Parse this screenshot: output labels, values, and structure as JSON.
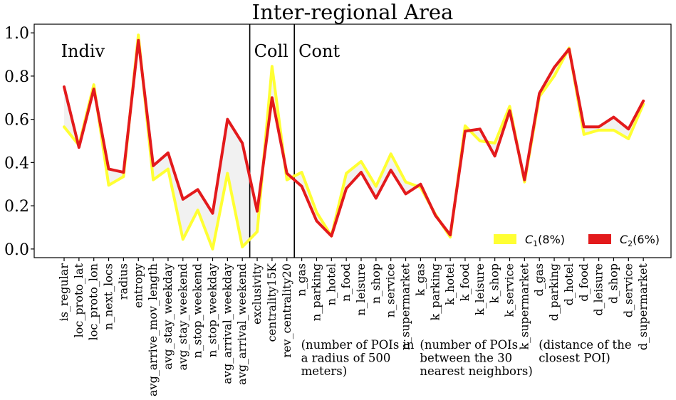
{
  "chart_data": {
    "type": "line",
    "title": "Inter-regional Area",
    "xlabel": "",
    "ylabel": "",
    "ylim": [
      -0.04,
      1.04
    ],
    "yticks": [
      0.0,
      0.2,
      0.4,
      0.6,
      0.8,
      1.0
    ],
    "ytick_labels": [
      "0.0",
      "0.2",
      "0.4",
      "0.6",
      "0.8",
      "1.0"
    ],
    "grid": false,
    "legend_position": "bottom-right",
    "categories": [
      "is_regular",
      "loc_proto_lat",
      "loc_proto_lon",
      "n_next_locs",
      "radius",
      "entropy",
      "avg_arrive_mov_length",
      "avg_stay_weekday",
      "avg_stay_weekend",
      "n_stop_weekend",
      "n_stop_weekday",
      "avg_arrival_weekday",
      "avg_arrival_weekend",
      "exclusivity",
      "centrality15K",
      "rev_centrality20",
      "n_gas",
      "n_parking",
      "n_hotel",
      "n_food",
      "n_leisure",
      "n_shop",
      "n_service",
      "n_supermarket",
      "k_gas",
      "k_parking",
      "k_hotel",
      "k_food",
      "k_leisure",
      "k_shop",
      "k_service",
      "k_supermarket",
      "d_gas",
      "d_parking",
      "d_hotel",
      "d_food",
      "d_leisure",
      "d_shop",
      "d_service",
      "d_supermarket"
    ],
    "series": [
      {
        "name_base": "C",
        "name_sub": "1",
        "name_suffix": "(8%)",
        "color": "#ffff33",
        "values": [
          0.565,
          0.48,
          0.76,
          0.295,
          0.335,
          0.99,
          0.32,
          0.37,
          0.045,
          0.18,
          0.0,
          0.35,
          0.01,
          0.08,
          0.845,
          0.32,
          0.355,
          0.17,
          0.06,
          0.35,
          0.405,
          0.29,
          0.44,
          0.31,
          0.285,
          0.16,
          0.055,
          0.57,
          0.5,
          0.49,
          0.66,
          0.31,
          0.705,
          0.8,
          0.93,
          0.53,
          0.55,
          0.55,
          0.51,
          0.67
        ]
      },
      {
        "name_base": "C",
        "name_sub": "2",
        "name_suffix": "(6%)",
        "color": "#e31a1c",
        "values": [
          0.75,
          0.47,
          0.74,
          0.37,
          0.355,
          0.965,
          0.385,
          0.445,
          0.23,
          0.275,
          0.165,
          0.6,
          0.49,
          0.175,
          0.7,
          0.35,
          0.29,
          0.13,
          0.06,
          0.28,
          0.355,
          0.235,
          0.365,
          0.255,
          0.3,
          0.155,
          0.065,
          0.545,
          0.555,
          0.43,
          0.64,
          0.32,
          0.72,
          0.84,
          0.925,
          0.565,
          0.565,
          0.61,
          0.555,
          0.685
        ]
      }
    ],
    "sections": [
      {
        "label": "Indiv",
        "start": 0
      },
      {
        "label": "Coll",
        "start": 13
      },
      {
        "label": "Cont",
        "start": 16
      }
    ],
    "annotations": [
      {
        "lines": [
          "(number of POIs in",
          "a radius of 500",
          "meters)"
        ],
        "anchor": 16
      },
      {
        "lines": [
          "(number of POIs",
          "between the 30",
          "nearest neighbors)"
        ],
        "anchor": 24
      },
      {
        "lines": [
          "(distance of the",
          "closest POI)"
        ],
        "anchor": 32
      }
    ]
  }
}
